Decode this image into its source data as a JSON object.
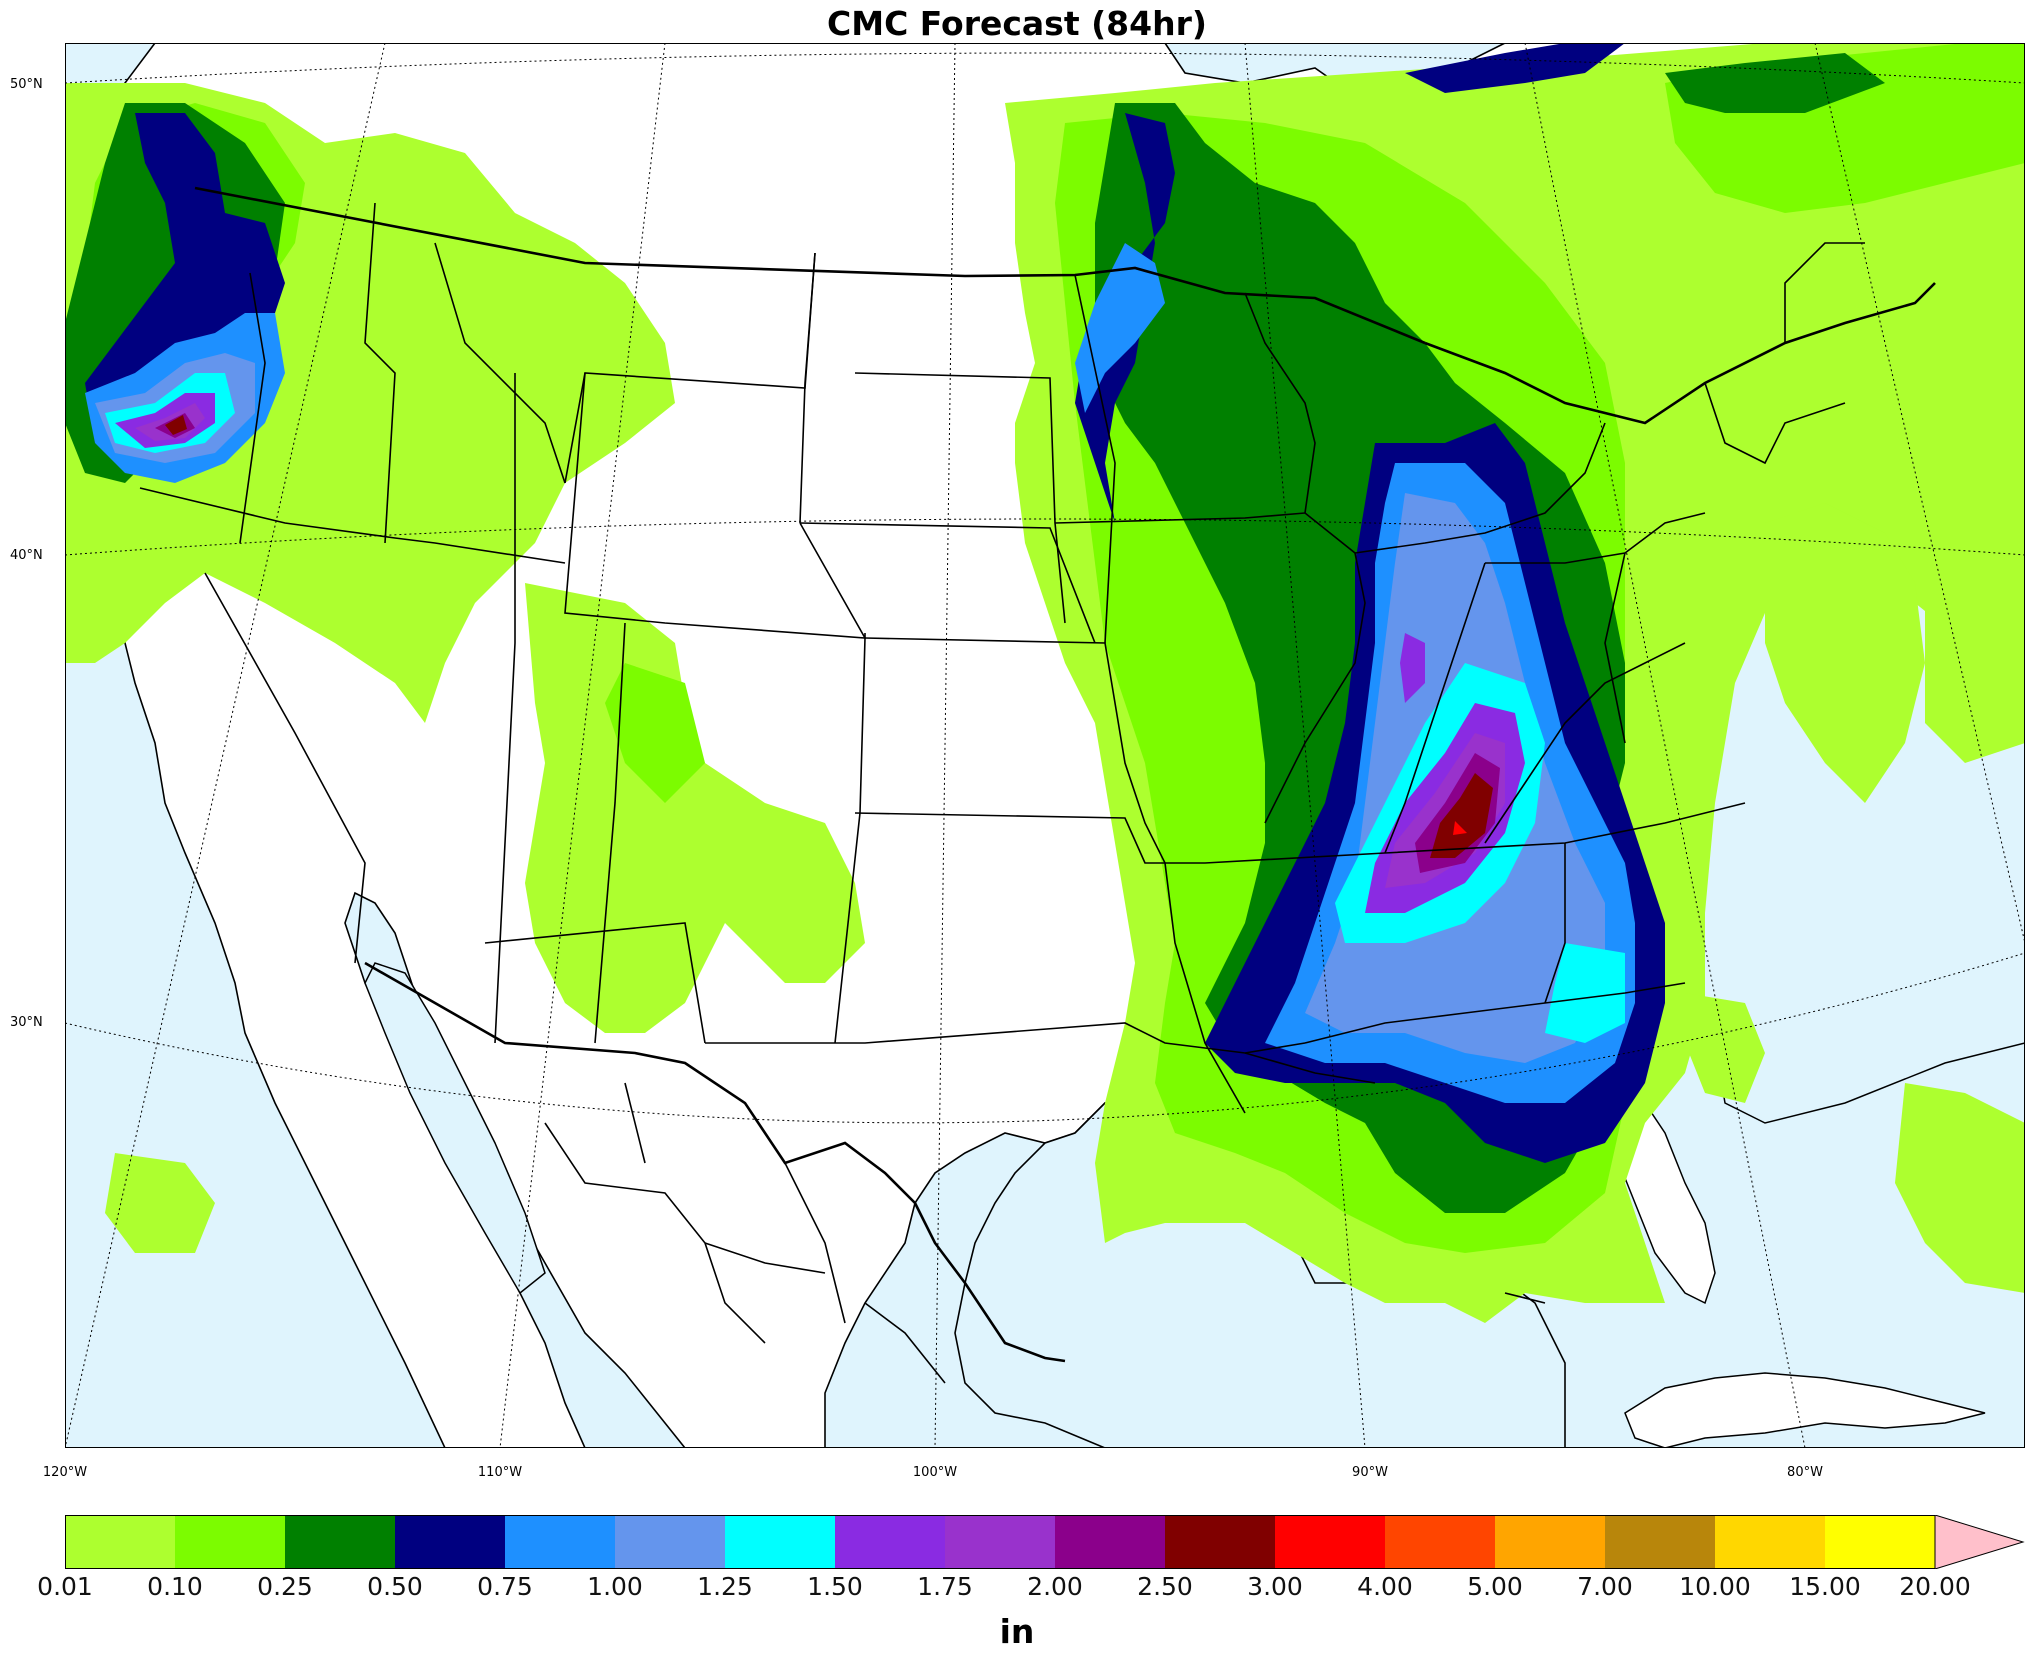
{
  "title": "CMC Forecast (84hr)",
  "units": "in",
  "lat_labels": [
    "50°N",
    "40°N",
    "30°N"
  ],
  "lon_labels": [
    "120°W",
    "110°W",
    "100°W",
    "90°W",
    "80°W"
  ],
  "colorbar": {
    "ticks": [
      "0.01",
      "0.10",
      "0.25",
      "0.50",
      "0.75",
      "1.00",
      "1.25",
      "1.50",
      "1.75",
      "2.00",
      "2.50",
      "3.00",
      "4.00",
      "5.00",
      "7.00",
      "10.00",
      "15.00",
      "20.00"
    ],
    "colors": [
      "#adff2f",
      "#7cfc00",
      "#008000",
      "#000080",
      "#1e90ff",
      "#6495ed",
      "#00ffff",
      "#8a2be2",
      "#9932cc",
      "#8b008b",
      "#800000",
      "#ff0000",
      "#ff4500",
      "#ffa500",
      "#b8860b",
      "#ffd700",
      "#ffff00"
    ],
    "extend_color": "#ffc0cb"
  },
  "colors": {
    "ocean": "#dff4fd",
    "land": "#ffffff",
    "border": "#000000"
  }
}
